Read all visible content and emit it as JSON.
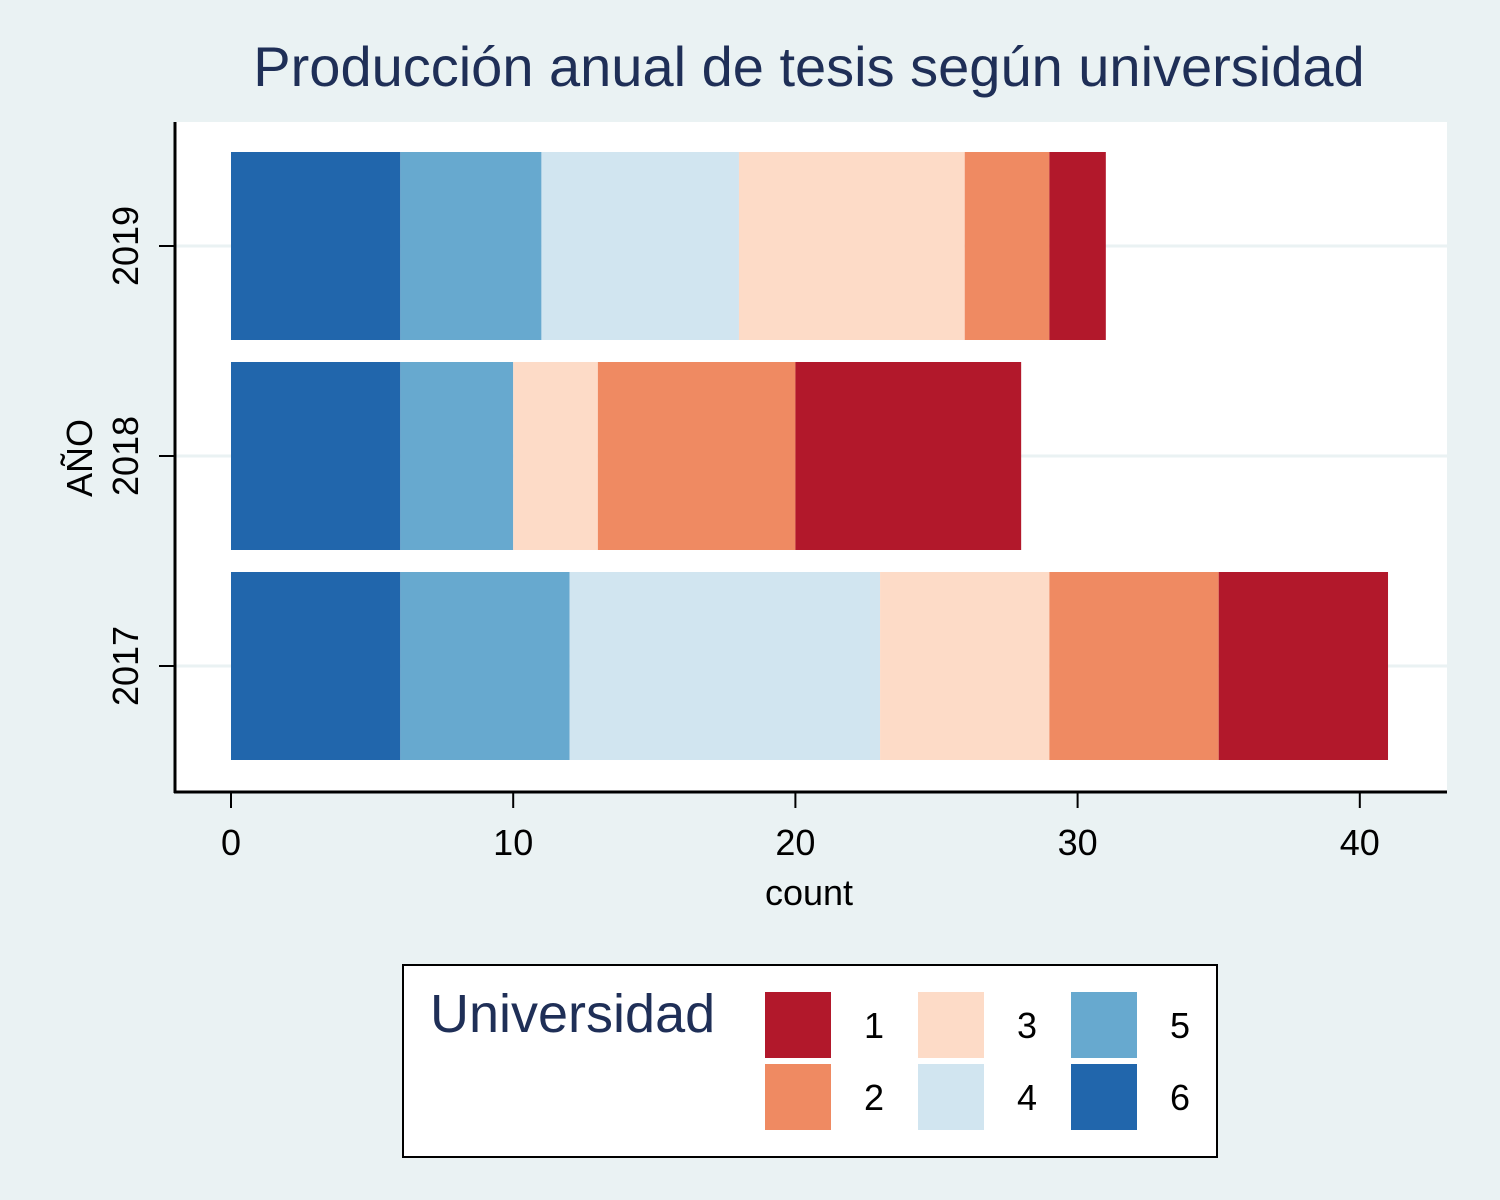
{
  "chart_data": {
    "type": "bar",
    "orientation": "horizontal",
    "stacked": true,
    "title": "Producción anual de tesis según universidad",
    "xlabel": "count",
    "ylabel": "AÑO",
    "xlim": [
      0,
      43
    ],
    "xticks": [
      "0",
      "10",
      "20",
      "30",
      "40"
    ],
    "categories": [
      "2017",
      "2018",
      "2019"
    ],
    "grid": "horizontal",
    "legend": {
      "title": "Universidad",
      "placement": "bottom-center",
      "order": [
        "1",
        "2",
        "3",
        "4",
        "5",
        "6"
      ]
    },
    "series": [
      {
        "name": "6",
        "color": "#2166ac",
        "values": [
          6,
          6,
          6
        ]
      },
      {
        "name": "5",
        "color": "#67a9cf",
        "values": [
          6,
          4,
          5
        ]
      },
      {
        "name": "4",
        "color": "#d1e5f0",
        "values": [
          11,
          0,
          7
        ]
      },
      {
        "name": "3",
        "color": "#fddbc7",
        "values": [
          6,
          3,
          8
        ]
      },
      {
        "name": "2",
        "color": "#ef8a62",
        "values": [
          6,
          7,
          3
        ]
      },
      {
        "name": "1",
        "color": "#b2182b",
        "values": [
          6,
          8,
          2
        ]
      }
    ]
  }
}
